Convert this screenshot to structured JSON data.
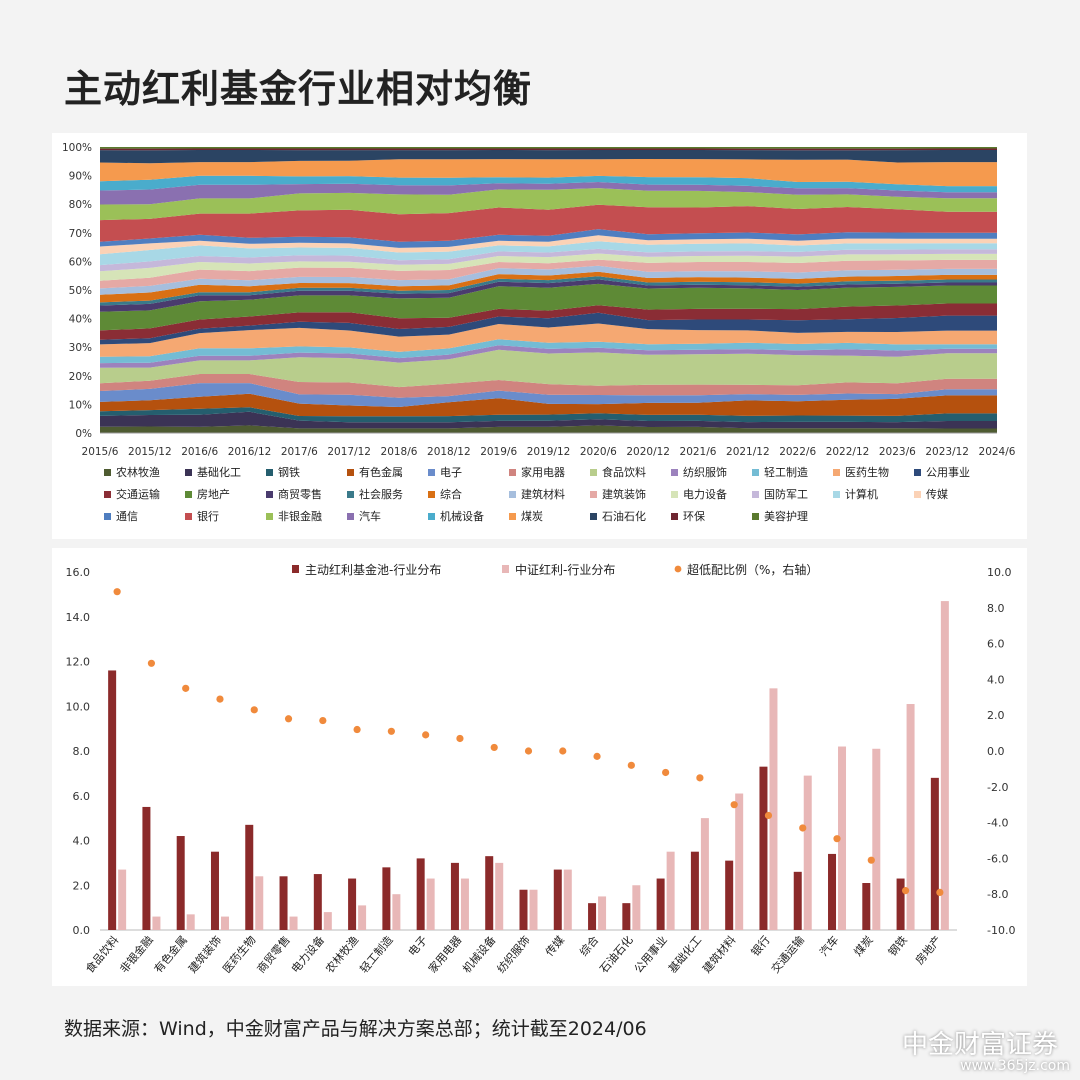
{
  "title": "主动红利基金行业相对均衡",
  "source_note": "数据来源：Wind，中金财富产品与解决方案总部；统计截至2024/06",
  "watermark": "中金财富证券",
  "watermark_url": "www.365jz.com",
  "chart_data": [
    {
      "type": "area",
      "stacked": true,
      "percent": true,
      "x": [
        "2015/6",
        "2015/12",
        "2016/6",
        "2016/12",
        "2017/6",
        "2017/12",
        "2018/6",
        "2018/12",
        "2019/6",
        "2019/12",
        "2020/6",
        "2020/12",
        "2021/6",
        "2021/12",
        "2022/6",
        "2022/12",
        "2023/6",
        "2023/12",
        "2024/6"
      ],
      "ylim": [
        0,
        100
      ],
      "yticks": [
        "0%",
        "10%",
        "20%",
        "30%",
        "40%",
        "50%",
        "60%",
        "70%",
        "80%",
        "90%",
        "100%"
      ],
      "legend_position": "bottom",
      "series": [
        {
          "name": "农林牧渔",
          "color": "#4e5b31",
          "values": [
            2,
            2,
            2,
            2.5,
            1.5,
            1.5,
            1.5,
            1.5,
            2,
            2,
            2.5,
            2,
            2,
            1.5,
            1.5,
            1.5,
            1.5,
            1.5,
            1.5
          ]
        },
        {
          "name": "基础化工",
          "color": "#3b3355",
          "values": [
            3.5,
            3.5,
            4,
            4.5,
            2.5,
            2,
            2,
            2,
            2,
            2,
            2,
            2,
            2,
            2,
            2,
            2,
            2,
            2.5,
            2.5
          ]
        },
        {
          "name": "钢铁",
          "color": "#255e6e",
          "values": [
            1.5,
            1.5,
            2,
            1.5,
            1.5,
            2,
            2,
            2,
            2,
            2,
            2,
            2,
            2,
            2,
            2,
            2,
            2,
            2.5,
            2.5
          ]
        },
        {
          "name": "有色金属",
          "color": "#b5510e",
          "values": [
            3,
            3,
            4,
            4.5,
            4,
            3.5,
            3,
            4.5,
            5.5,
            3.5,
            3,
            4,
            4,
            5,
            4.5,
            5,
            5.5,
            6,
            6
          ]
        },
        {
          "name": "电子",
          "color": "#6a8ccb",
          "values": [
            3.5,
            3.5,
            4.5,
            3.5,
            3,
            3.5,
            3,
            2,
            2.5,
            3,
            3,
            2.5,
            2.5,
            2,
            2,
            2,
            1.5,
            2,
            2
          ]
        },
        {
          "name": "家用电器",
          "color": "#d0847f",
          "values": [
            2.5,
            2.5,
            3,
            3,
            4,
            4,
            3.5,
            4,
            3.5,
            3.5,
            3,
            3.5,
            3.5,
            3,
            3,
            3.5,
            3.5,
            3.5,
            3.5
          ]
        },
        {
          "name": "食品饮料",
          "color": "#b8cd8c",
          "values": [
            5,
            4,
            4.5,
            4.5,
            8,
            8,
            8,
            8,
            10,
            10,
            11,
            10,
            10,
            10,
            9.5,
            8.5,
            8.5,
            8.5,
            8.5
          ]
        },
        {
          "name": "纺织服饰",
          "color": "#9c82bd",
          "values": [
            1.5,
            1.5,
            1.5,
            1.5,
            1.5,
            1.5,
            1.5,
            1.5,
            1.5,
            1.5,
            1.5,
            1.5,
            1.5,
            1.5,
            1.5,
            2,
            2,
            1.5,
            1.5
          ]
        },
        {
          "name": "轻工制造",
          "color": "#74bcd4",
          "values": [
            2,
            2,
            2.5,
            2.5,
            2,
            2,
            2,
            2,
            2,
            2,
            2,
            2,
            2,
            2,
            2,
            2,
            2,
            1.5,
            1.5
          ]
        },
        {
          "name": "医药生物",
          "color": "#f5a872",
          "values": [
            4,
            4,
            5,
            6,
            6,
            5.5,
            5,
            4.5,
            5,
            5,
            6,
            5,
            4.5,
            4,
            3.5,
            3.5,
            4,
            4.5,
            4.5
          ]
        },
        {
          "name": "公用事业",
          "color": "#2e4a7a",
          "values": [
            1.5,
            1.5,
            1.5,
            1.5,
            2,
            2.5,
            2.5,
            2.5,
            2.5,
            3,
            3.5,
            3,
            3.5,
            3.5,
            4,
            4,
            4.5,
            5,
            5
          ]
        },
        {
          "name": "交通运输",
          "color": "#8a2d35",
          "values": [
            3,
            3,
            3,
            3,
            3,
            3.5,
            3.5,
            3,
            2.5,
            2.5,
            2.5,
            3.5,
            3.5,
            3.5,
            3.5,
            4,
            4,
            4,
            4
          ]
        },
        {
          "name": "房地产",
          "color": "#5e8a36",
          "values": [
            6,
            5.5,
            6,
            5.5,
            5.5,
            5.5,
            6.5,
            6.5,
            7.5,
            7.5,
            7,
            7,
            7,
            6.5,
            6,
            6,
            6,
            6,
            6
          ]
        },
        {
          "name": "商贸零售",
          "color": "#4a3b6e",
          "values": [
            2,
            2,
            2,
            1.5,
            1.5,
            1.5,
            1.5,
            1.5,
            1.5,
            1.5,
            1.5,
            1,
            1,
            1,
            1,
            1,
            1,
            1,
            1
          ]
        },
        {
          "name": "社会服务",
          "color": "#3a7a8a",
          "values": [
            1,
            1,
            1,
            1,
            1,
            1,
            1,
            1,
            1,
            1,
            1,
            1,
            1,
            1,
            1,
            1,
            1,
            1,
            1
          ]
        },
        {
          "name": "综合",
          "color": "#d97014",
          "values": [
            2.5,
            2.5,
            2.5,
            2,
            1.5,
            1.5,
            1.5,
            1.5,
            1.5,
            1.5,
            1.5,
            1.5,
            1.5,
            1.5,
            1.5,
            1.5,
            1.5,
            1.5,
            1.5
          ]
        },
        {
          "name": "建筑材料",
          "color": "#a6bedd",
          "values": [
            2,
            2,
            2,
            2,
            2,
            2,
            2,
            2,
            2,
            2,
            2,
            2,
            2,
            2,
            2,
            2,
            2,
            2,
            2
          ]
        },
        {
          "name": "建筑装饰",
          "color": "#e5a9a5",
          "values": [
            2.5,
            2.5,
            3,
            3,
            3,
            3,
            3,
            3,
            2,
            2,
            2,
            3,
            3,
            3,
            3,
            3,
            3,
            3,
            3
          ]
        },
        {
          "name": "电力设备",
          "color": "#d6e4b8",
          "values": [
            3,
            3,
            2.5,
            2.5,
            2,
            2,
            2,
            2,
            2,
            2,
            2,
            2,
            2,
            2,
            2,
            2,
            2,
            2,
            2
          ]
        },
        {
          "name": "国防军工",
          "color": "#c5b8da",
          "values": [
            2,
            2,
            2,
            2,
            2,
            2,
            1.5,
            1.5,
            1.5,
            1.5,
            1.5,
            1.5,
            1.5,
            1.5,
            1.5,
            1.5,
            1.5,
            1.5,
            1.5
          ]
        },
        {
          "name": "计算机",
          "color": "#a8d8e6",
          "values": [
            3.5,
            3.5,
            3.5,
            3,
            2.5,
            2.5,
            2.5,
            2.5,
            2,
            2,
            2.5,
            2.5,
            2.5,
            2.5,
            2,
            2,
            2,
            2,
            2
          ]
        },
        {
          "name": "传媒",
          "color": "#fbd2b6",
          "values": [
            2.5,
            2,
            1.5,
            1.5,
            1.5,
            1.5,
            1.5,
            1.5,
            1.5,
            1.5,
            2,
            1.5,
            1.5,
            1.5,
            1.5,
            1.5,
            1.5,
            1.5,
            1.5
          ]
        },
        {
          "name": "通信",
          "color": "#4f7ec0",
          "values": [
            1.5,
            1.5,
            2,
            2,
            2,
            2,
            2,
            2,
            2,
            2,
            2,
            2,
            2,
            2,
            2,
            2,
            2,
            2,
            2
          ]
        },
        {
          "name": "银行",
          "color": "#c44e50",
          "values": [
            7,
            6,
            7,
            8,
            8.5,
            9,
            9,
            9,
            9,
            8.5,
            8,
            9,
            8.5,
            8.5,
            8,
            8,
            7.5,
            7,
            7
          ]
        },
        {
          "name": "非银金融",
          "color": "#9bc058",
          "values": [
            5,
            4.5,
            5,
            5,
            5.5,
            5.5,
            6.5,
            6,
            6,
            6.5,
            5.5,
            5.5,
            5.5,
            4.5,
            4.5,
            4,
            4,
            4.5,
            4.5
          ]
        },
        {
          "name": "汽车",
          "color": "#8a70b0",
          "values": [
            4.5,
            4.5,
            4.5,
            4.5,
            3,
            3,
            3,
            3,
            2,
            2,
            2,
            2,
            2,
            2,
            2,
            2,
            2,
            2,
            2
          ]
        },
        {
          "name": "机械设备",
          "color": "#4aaccc",
          "values": [
            3,
            3,
            3,
            3,
            2.5,
            2.5,
            2.5,
            2.5,
            2,
            2,
            2,
            2.5,
            2.5,
            2.5,
            2,
            2,
            2,
            2,
            2
          ]
        },
        {
          "name": "煤炭",
          "color": "#f59a4e",
          "values": [
            6,
            5,
            4.5,
            4.5,
            5,
            5,
            6,
            6,
            6,
            6,
            5.5,
            6,
            6,
            6,
            7,
            7,
            7,
            8,
            8
          ]
        },
        {
          "name": "石油石化",
          "color": "#2b4463",
          "values": [
            4,
            4,
            4,
            4,
            3.5,
            3.5,
            3,
            3,
            3,
            3,
            3,
            3,
            3,
            3,
            3,
            3,
            4,
            4,
            4
          ]
        },
        {
          "name": "环保",
          "color": "#6e2530",
          "values": [
            0.5,
            0.5,
            0.5,
            0.5,
            0.5,
            0.5,
            0.5,
            0.5,
            0.5,
            0.5,
            0.5,
            0.5,
            0.5,
            0.5,
            0.5,
            0.5,
            0.5,
            0.5,
            0.5
          ]
        },
        {
          "name": "美容护理",
          "color": "#5a7a2e",
          "values": [
            0.5,
            0.5,
            0.5,
            0.5,
            0.5,
            0.5,
            0.5,
            0.5,
            0.5,
            0.5,
            0.5,
            0.5,
            0.5,
            0.5,
            0.5,
            0.5,
            0.5,
            0.5,
            0.5
          ]
        }
      ]
    },
    {
      "type": "bar",
      "legend_position": "top",
      "categories": [
        "食品饮料",
        "非银金融",
        "有色金属",
        "建筑装饰",
        "医药生物",
        "商贸零售",
        "电力设备",
        "农林牧渔",
        "轻工制造",
        "电子",
        "家用电器",
        "机械设备",
        "纺织服饰",
        "传媒",
        "综合",
        "石油石化",
        "公用事业",
        "基础化工",
        "建筑材料",
        "银行",
        "交通运输",
        "汽车",
        "煤炭",
        "钢铁",
        "房地产"
      ],
      "ylim_left": [
        0,
        16
      ],
      "yticks_left": [
        "0.0",
        "2.0",
        "4.0",
        "6.0",
        "8.0",
        "10.0",
        "12.0",
        "14.0",
        "16.0"
      ],
      "ylim_right": [
        -10,
        10
      ],
      "yticks_right": [
        "-10.0",
        "-8.0",
        "-6.0",
        "-4.0",
        "-2.0",
        "0.0",
        "2.0",
        "4.0",
        "6.0",
        "8.0",
        "10.0"
      ],
      "series": [
        {
          "name": "主动红利基金池-行业分布",
          "kind": "bar",
          "axis": "left",
          "color": "#8b2a2a",
          "values": [
            11.6,
            5.5,
            4.2,
            3.5,
            4.7,
            2.4,
            2.5,
            2.3,
            2.8,
            3.2,
            3.0,
            3.3,
            1.8,
            2.7,
            1.2,
            1.2,
            2.3,
            3.5,
            3.1,
            7.3,
            2.6,
            3.4,
            2.1,
            2.3,
            6.8
          ]
        },
        {
          "name": "中证红利-行业分布",
          "kind": "bar",
          "axis": "left",
          "color": "#e8b7b7",
          "values": [
            2.7,
            0.6,
            0.7,
            0.6,
            2.4,
            0.6,
            0.8,
            1.1,
            1.6,
            2.3,
            2.3,
            3.0,
            1.8,
            2.7,
            1.5,
            2.0,
            3.5,
            5.0,
            6.1,
            10.8,
            6.9,
            8.2,
            8.1,
            10.1,
            14.7
          ]
        },
        {
          "name": "超低配比例（%，右轴）",
          "kind": "scatter",
          "axis": "right",
          "color": "#f08a3c",
          "values": [
            8.9,
            4.9,
            3.5,
            2.9,
            2.3,
            1.8,
            1.7,
            1.2,
            1.1,
            0.9,
            0.7,
            0.2,
            0.0,
            0.0,
            -0.3,
            -0.8,
            -1.2,
            -1.5,
            -3.0,
            -3.6,
            -4.3,
            -4.9,
            -6.1,
            -7.8,
            -7.9
          ]
        }
      ]
    }
  ]
}
